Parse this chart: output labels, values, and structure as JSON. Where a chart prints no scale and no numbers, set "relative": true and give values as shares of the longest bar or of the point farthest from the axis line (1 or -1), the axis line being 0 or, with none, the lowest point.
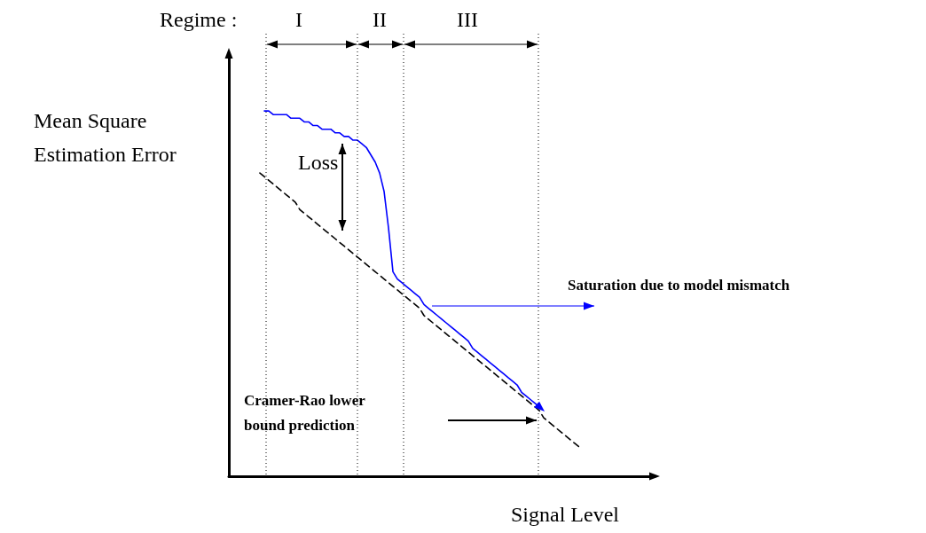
{
  "chart_data": {
    "type": "line",
    "relative": true,
    "xlabel": "Signal Level",
    "ylabel": "Mean Square Estimation Error",
    "categories": [
      null,
      null,
      null,
      null,
      null,
      null,
      null,
      null,
      null,
      null,
      null,
      null,
      null,
      null,
      null,
      null,
      null,
      null,
      null,
      null,
      null,
      null,
      null,
      null,
      null,
      null,
      null,
      null,
      null,
      null,
      null,
      null,
      null,
      null,
      null,
      null,
      null,
      null,
      null,
      null,
      null,
      null,
      null,
      null,
      null,
      null,
      null,
      null,
      null,
      null,
      null,
      null,
      null,
      null,
      null,
      null,
      null,
      null,
      null,
      null,
      null,
      null,
      null,
      null,
      null,
      null,
      null,
      null,
      null,
      null,
      null,
      null,
      null,
      null,
      null,
      null,
      null,
      null,
      null,
      null,
      null,
      null,
      null,
      null,
      null,
      null,
      null,
      null,
      null,
      null,
      null,
      null,
      null,
      null,
      null,
      null,
      null
    ],
    "series": [
      {
        "color": "#0000ff",
        "line_style": "solid",
        "values": [
          null,
          null,
          null,
          null,
          null,
          null,
          null,
          null,
          1.0,
          1.0,
          0.99,
          0.99,
          0.99,
          0.99,
          0.98,
          0.98,
          0.98,
          0.97,
          0.97,
          0.96,
          0.96,
          0.95,
          0.95,
          0.95,
          0.94,
          0.94,
          0.93,
          0.93,
          0.92,
          0.92,
          0.91,
          0.9,
          0.88,
          0.86,
          0.83,
          0.78,
          0.68,
          0.56,
          0.54,
          0.53,
          0.52,
          0.51,
          0.5,
          0.49,
          0.47,
          0.46,
          0.45,
          0.44,
          0.43,
          0.42,
          0.41,
          0.4,
          0.39,
          0.38,
          0.37,
          0.35,
          0.34,
          0.33,
          0.32,
          0.31,
          0.3,
          0.29,
          0.28,
          0.27,
          0.26,
          0.25,
          0.23,
          0.22,
          0.21,
          0.2,
          0.19,
          null,
          null,
          null,
          null,
          null,
          null,
          null,
          null,
          null,
          null,
          null,
          null,
          null,
          null,
          null,
          null,
          null,
          null,
          null,
          null,
          null,
          null,
          null,
          null,
          null,
          null
        ]
      },
      {
        "color": "#000000",
        "line_style": "dashed",
        "values": [
          null,
          null,
          null,
          null,
          null,
          null,
          null,
          0.83,
          0.82,
          0.81,
          0.8,
          0.79,
          0.78,
          0.77,
          0.76,
          0.75,
          0.73,
          0.72,
          0.71,
          0.7,
          0.69,
          0.68,
          0.67,
          0.66,
          0.65,
          0.64,
          0.63,
          0.62,
          0.61,
          0.6,
          0.59,
          0.58,
          0.57,
          0.56,
          0.55,
          0.54,
          0.53,
          0.52,
          0.51,
          0.5,
          0.49,
          0.48,
          0.47,
          0.46,
          0.44,
          0.43,
          0.42,
          0.41,
          0.4,
          0.39,
          0.38,
          0.37,
          0.36,
          0.35,
          0.34,
          0.33,
          0.32,
          0.31,
          0.3,
          0.29,
          0.28,
          0.27,
          0.26,
          0.25,
          0.24,
          0.23,
          0.22,
          0.21,
          0.2,
          0.19,
          0.18,
          0.16,
          0.15,
          0.14,
          0.13,
          0.12,
          0.11,
          0.1,
          0.09,
          0.08,
          null,
          null,
          null,
          null,
          null,
          null,
          null,
          null,
          null,
          null,
          null,
          null,
          null,
          null,
          null,
          null,
          null
        ]
      }
    ],
    "marker": "none",
    "grid": false,
    "annotations": [
      "Regime :",
      "I",
      "II",
      "III",
      "Loss",
      "Saturation due to model mismatch",
      "Cramer-Rao lower bound prediction"
    ]
  }
}
